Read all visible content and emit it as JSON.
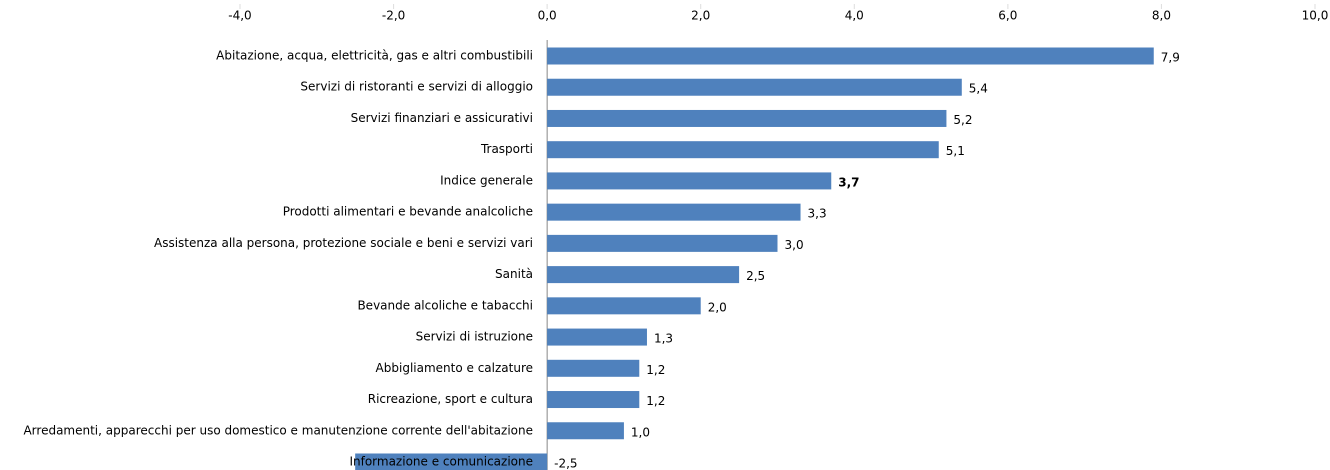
{
  "chart_data": {
    "type": "bar",
    "orientation": "horizontal",
    "categories": [
      "Abitazione, acqua, elettricità, gas e altri combustibili",
      "Servizi di ristoranti e servizi di alloggio",
      "Servizi finanziari e assicurativi",
      "Trasporti",
      "Indice generale",
      "Prodotti alimentari e bevande analcoliche",
      "Assistenza alla persona, protezione sociale e beni e servizi vari",
      "Sanità",
      "Bevande alcoliche e tabacchi",
      "Servizi di istruzione",
      "Abbigliamento e calzature",
      "Ricreazione, sport e cultura",
      "Arredamenti, apparecchi per uso domestico e manutenzione corrente dell'abitazione",
      "Informazione e comunicazione"
    ],
    "values": [
      7.9,
      5.4,
      5.2,
      5.1,
      3.7,
      3.3,
      3.0,
      2.5,
      2.0,
      1.3,
      1.2,
      1.2,
      1.0,
      -2.5
    ],
    "value_labels": [
      "7,9",
      "5,4",
      "5,2",
      "5,1",
      "3,7",
      "3,3",
      "3,0",
      "2,5",
      "2,0",
      "1,3",
      "1,2",
      "1,2",
      "1,0",
      "-2,5"
    ],
    "value_label_colors": [
      "#000000",
      "#000000",
      "#000000",
      "#000000",
      "#c00000",
      "#000000",
      "#000000",
      "#000000",
      "#000000",
      "#000000",
      "#000000",
      "#000000",
      "#000000",
      "#000000"
    ],
    "color": "#4f81bd",
    "xlim": [
      -4,
      10
    ],
    "xticks": [
      {
        "value": -4,
        "label": "-4,0"
      },
      {
        "value": -2,
        "label": "-2,0"
      },
      {
        "value": 0,
        "label": "0,0"
      },
      {
        "value": 2,
        "label": "2,0"
      },
      {
        "value": 4,
        "label": "4,0"
      },
      {
        "value": 6,
        "label": "6,0"
      },
      {
        "value": 8,
        "label": "8,0"
      },
      {
        "value": 10,
        "label": "10,0"
      }
    ]
  }
}
